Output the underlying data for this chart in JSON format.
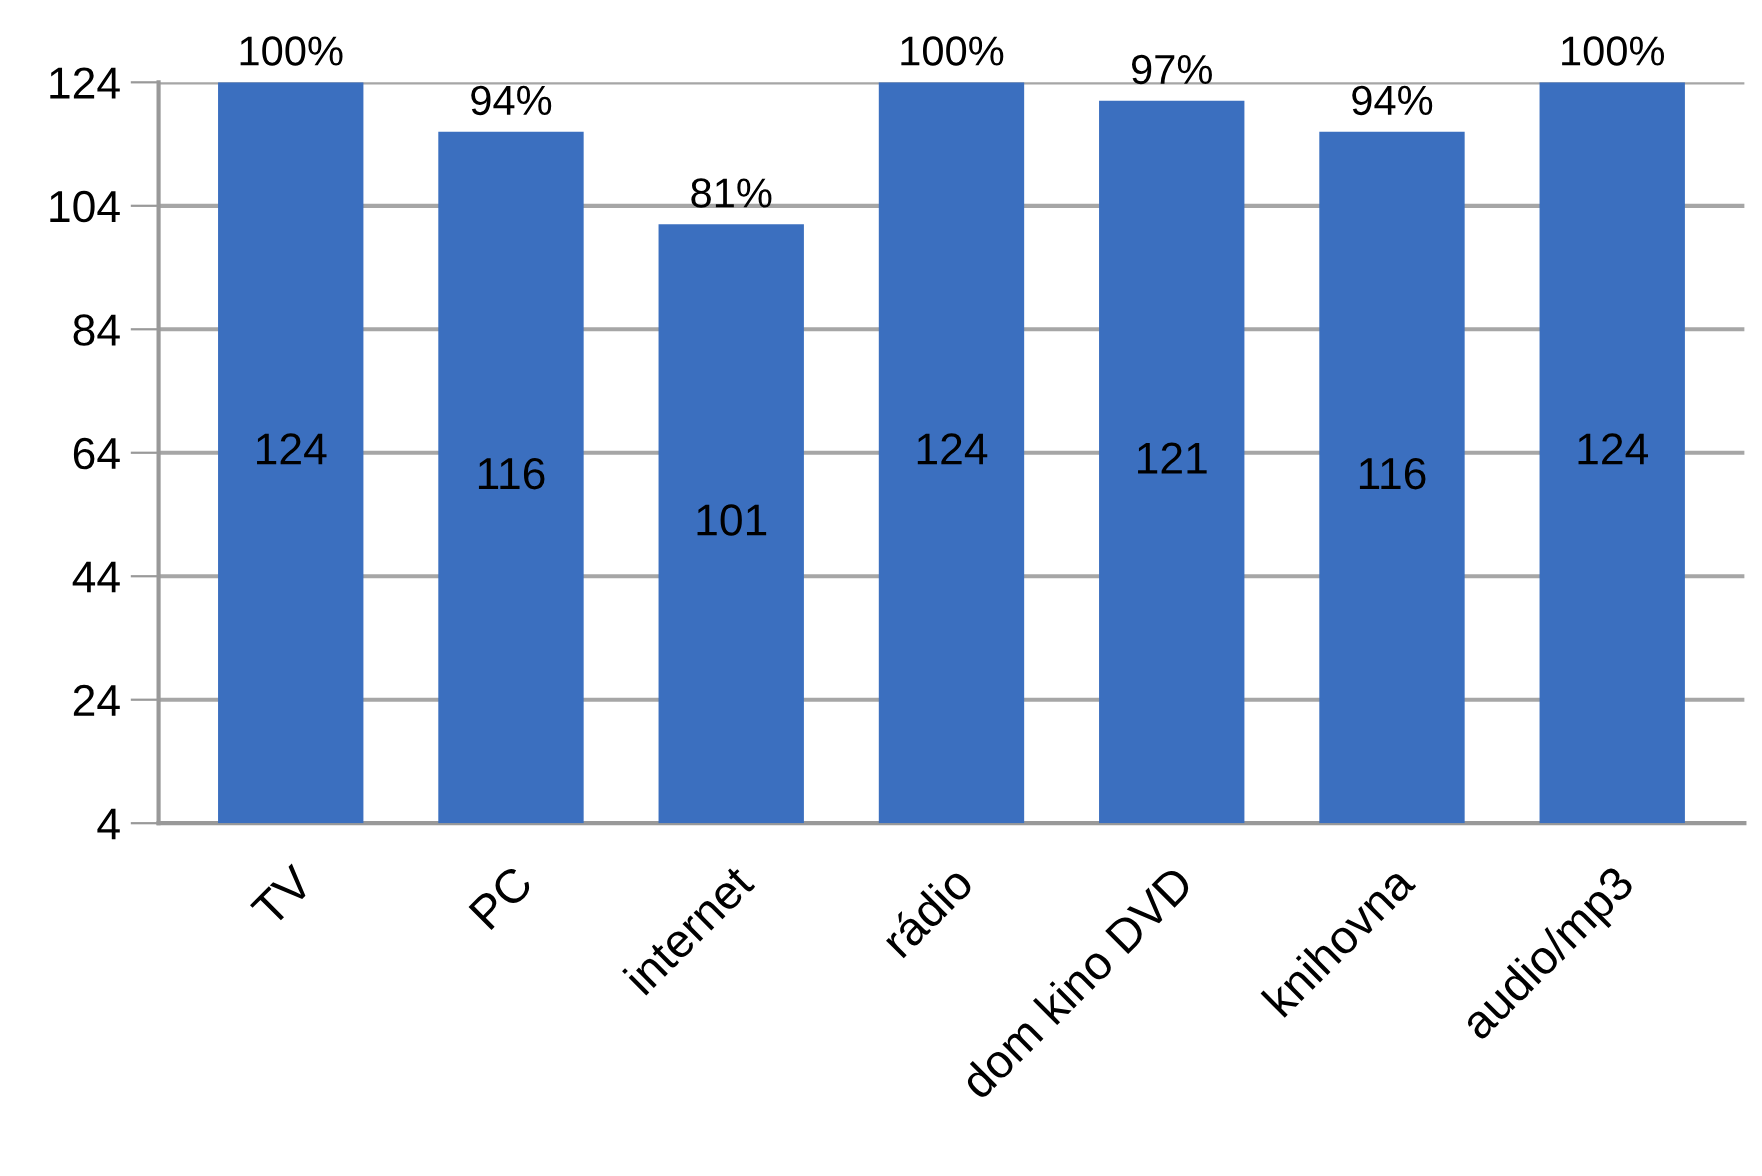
{
  "chart_data": {
    "type": "bar",
    "categories": [
      "TV",
      "PC",
      "internet",
      "rádio",
      "dom kino DVD",
      "knihovna",
      "audio/mp3"
    ],
    "values": [
      124,
      116,
      101,
      124,
      121,
      116,
      124
    ],
    "color": "#3b6fbf",
    "ylim": [
      4,
      124
    ],
    "yticks": [
      4,
      24,
      44,
      64,
      84,
      104,
      124
    ],
    "grid": "y",
    "data_labels": true,
    "annotations": [
      {
        "text": "100%",
        "x": "TV",
        "y": 124
      },
      {
        "text": "94%",
        "x": "PC",
        "y": 116
      },
      {
        "text": "81%",
        "x": "internet",
        "y": 101
      },
      {
        "text": "100%",
        "x": "rádio",
        "y": 124
      },
      {
        "text": "97%",
        "x": "dom kino DVD",
        "y": 121
      },
      {
        "text": "94%",
        "x": "knihovna",
        "y": 116
      },
      {
        "text": "100%",
        "x": "audio/mp3",
        "y": 124
      }
    ]
  }
}
